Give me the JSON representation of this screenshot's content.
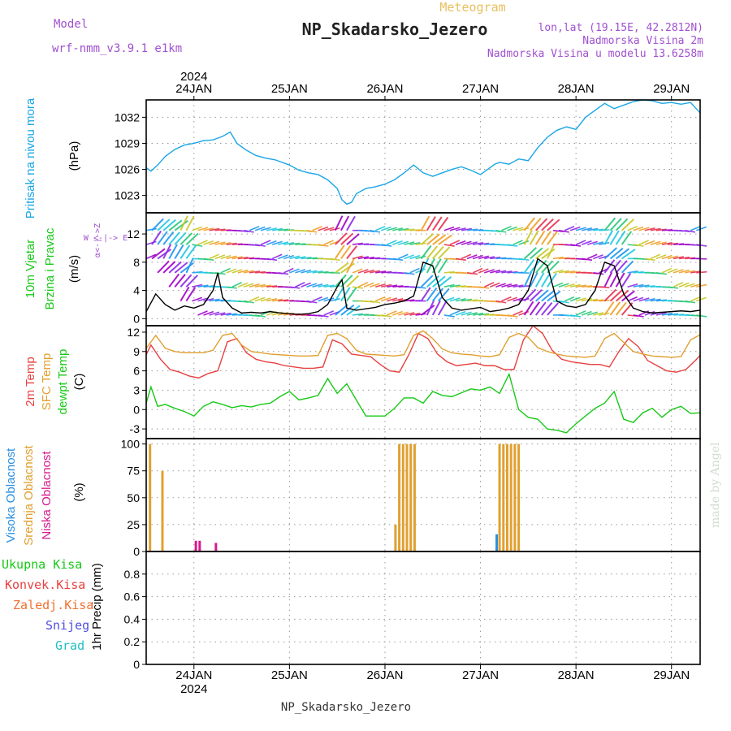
{
  "header": {
    "model_label": "Model",
    "model_name": "wrf-nmm_v3.9.1 e1km",
    "product": "Meteogram",
    "station": "NP_Skadarsko_Jezero",
    "lonlat": "lon,lat (19.15E, 42.2812N)",
    "elevation": "Nadmorska Visina 2m",
    "model_elevation": "Nadmorska Visina u modelu 13.6258m",
    "credit": "made by Angel",
    "footer_station": "NP_Skadarsko_Jezero"
  },
  "colors": {
    "pressure": "#1aa6e6",
    "wind_label": "#17c917",
    "wind_label2": "#22b022",
    "wind_speed": "#000000",
    "temp2m": "#e84040",
    "sfc_temp": "#e0a030",
    "dewpoint": "#17c917",
    "cloud_high": "#2a8fe0",
    "cloud_mid": "#e0a030",
    "cloud_low": "#d81b8c",
    "precip_total": "#17c917",
    "precip_conv": "#e84040",
    "precip_grid": "#f07030",
    "snow": "#5050e0",
    "hail": "#20c0c0",
    "purple": "#a050d0",
    "gold": "#e8c060"
  },
  "chart_data": {
    "x_axis": {
      "days": [
        "24JAN",
        "25JAN",
        "26JAN",
        "27JAN",
        "28JAN",
        "29JAN"
      ],
      "year": "2024",
      "range_days": [
        -0.5,
        5.3
      ]
    },
    "panels": [
      {
        "id": "pressure",
        "type": "line",
        "ylabel_title": "Pritisak na nivou mora",
        "ylabel_unit": "(hPa)",
        "ylim": [
          1021,
          1034
        ],
        "ticks": [
          1023,
          1026,
          1029,
          1032
        ],
        "series": [
          {
            "x": [
              -0.5,
              -0.45,
              -0.38,
              -0.3,
              -0.2,
              -0.1,
              0.0,
              0.1,
              0.2,
              0.3,
              0.38,
              0.45,
              0.55,
              0.65,
              0.75,
              0.85,
              1.0,
              1.1,
              1.2,
              1.3,
              1.4,
              1.5,
              1.55,
              1.6,
              1.65,
              1.7,
              1.8,
              1.9,
              2.0,
              2.1,
              2.2,
              2.3,
              2.4,
              2.5,
              2.6,
              2.7,
              2.8,
              2.9,
              3.0,
              3.1,
              3.15,
              3.2,
              3.3,
              3.4,
              3.5,
              3.6,
              3.7,
              3.8,
              3.9,
              4.0,
              4.1,
              4.2,
              4.3,
              4.4,
              4.5,
              4.6,
              4.7,
              4.8,
              4.9,
              5.0,
              5.1,
              5.2,
              5.3
            ],
            "y": [
              1026.2,
              1025.8,
              1026.5,
              1027.5,
              1028.3,
              1028.8,
              1029.0,
              1029.3,
              1029.4,
              1029.8,
              1030.3,
              1029.0,
              1028.2,
              1027.6,
              1027.3,
              1027.1,
              1026.5,
              1025.9,
              1025.6,
              1025.4,
              1024.8,
              1023.8,
              1022.5,
              1022.0,
              1022.2,
              1023.2,
              1023.8,
              1024.0,
              1024.3,
              1024.8,
              1025.6,
              1026.5,
              1025.6,
              1025.2,
              1025.6,
              1026.0,
              1026.3,
              1025.9,
              1025.4,
              1026.2,
              1026.6,
              1026.8,
              1026.6,
              1027.2,
              1027.0,
              1028.5,
              1029.7,
              1030.5,
              1030.9,
              1030.6,
              1032.0,
              1032.8,
              1033.6,
              1033.0,
              1033.4,
              1033.8,
              1034.0,
              1033.9,
              1033.6,
              1033.7,
              1033.5,
              1033.7,
              1032.5
            ],
            "name": ""
          }
        ]
      },
      {
        "id": "wind",
        "type": "line",
        "ylabel_title_1": "10m Vjetar",
        "ylabel_title_2": "Brzina i Pravac",
        "ylabel_unit": "(m/s)",
        "legend_compass": "W <-|-> E",
        "legend_compass_v": "α<-|->Z",
        "ylim": [
          -1,
          15
        ],
        "ticks": [
          0,
          4,
          8,
          12
        ],
        "series": [
          {
            "x": [
              -0.5,
              -0.4,
              -0.3,
              -0.2,
              -0.1,
              0.0,
              0.1,
              0.2,
              0.25,
              0.3,
              0.4,
              0.5,
              0.6,
              0.7,
              0.8,
              0.9,
              1.0,
              1.1,
              1.2,
              1.3,
              1.4,
              1.5,
              1.55,
              1.6,
              1.7,
              1.8,
              1.9,
              2.0,
              2.1,
              2.2,
              2.3,
              2.4,
              2.5,
              2.6,
              2.7,
              2.8,
              2.9,
              3.0,
              3.1,
              3.2,
              3.3,
              3.4,
              3.5,
              3.6,
              3.7,
              3.8,
              3.9,
              4.0,
              4.1,
              4.2,
              4.3,
              4.4,
              4.5,
              4.6,
              4.7,
              4.8,
              4.9,
              5.0,
              5.1,
              5.2,
              5.3
            ],
            "y": [
              1.0,
              3.5,
              2.0,
              1.2,
              1.8,
              1.5,
              2.0,
              4.0,
              6.5,
              3.0,
              1.5,
              0.8,
              0.9,
              0.8,
              1.0,
              0.8,
              0.7,
              0.6,
              0.7,
              1.0,
              2.0,
              4.5,
              5.5,
              1.5,
              1.2,
              1.4,
              1.6,
              2.0,
              2.2,
              2.5,
              3.2,
              8.0,
              7.5,
              3.0,
              1.5,
              1.2,
              1.4,
              1.6,
              1.0,
              1.2,
              1.5,
              2.0,
              4.0,
              8.5,
              7.5,
              2.5,
              1.8,
              1.6,
              2.0,
              4.0,
              8.0,
              7.5,
              3.5,
              1.5,
              1.0,
              0.8,
              0.9,
              1.0,
              1.1,
              1.0,
              1.2
            ],
            "name": ""
          }
        ]
      },
      {
        "id": "temperature",
        "type": "line",
        "ylabel_title_1": "2m Temp",
        "ylabel_title_2": "SFC Temp",
        "ylabel_title_3": "dewpt Temp",
        "ylabel_unit": "(C)",
        "ylim": [
          -4.5,
          13
        ],
        "ticks": [
          -3,
          0,
          3,
          6,
          9,
          12
        ],
        "series": [
          {
            "name": "2m Temp",
            "x": [
              -0.5,
              -0.45,
              -0.35,
              -0.25,
              -0.15,
              -0.05,
              0.05,
              0.15,
              0.25,
              0.35,
              0.45,
              0.55,
              0.65,
              0.75,
              0.85,
              0.95,
              1.05,
              1.15,
              1.25,
              1.35,
              1.45,
              1.55,
              1.65,
              1.75,
              1.85,
              1.95,
              2.05,
              2.15,
              2.25,
              2.35,
              2.45,
              2.55,
              2.65,
              2.75,
              2.85,
              2.95,
              3.05,
              3.15,
              3.25,
              3.35,
              3.45,
              3.55,
              3.65,
              3.75,
              3.85,
              3.95,
              4.05,
              4.15,
              4.25,
              4.35,
              4.45,
              4.55,
              4.65,
              4.75,
              4.85,
              4.95,
              5.05,
              5.15,
              5.25,
              5.3
            ],
            "y": [
              8.5,
              10.0,
              7.8,
              6.2,
              5.8,
              5.2,
              4.9,
              5.6,
              6.0,
              10.5,
              11.0,
              8.8,
              7.8,
              7.4,
              7.2,
              6.8,
              6.6,
              6.4,
              6.4,
              6.6,
              10.8,
              10.2,
              8.6,
              8.4,
              8.2,
              7.0,
              6.0,
              5.8,
              8.5,
              11.8,
              11.0,
              8.6,
              7.4,
              6.8,
              7.0,
              7.2,
              6.8,
              6.8,
              6.2,
              6.2,
              10.8,
              13.0,
              11.8,
              9.2,
              7.8,
              7.4,
              7.2,
              7.0,
              7.0,
              6.6,
              9.0,
              11.0,
              9.8,
              7.6,
              6.8,
              6.0,
              5.8,
              6.2,
              7.6,
              8.4
            ]
          },
          {
            "name": "SFC Temp",
            "x": [
              -0.5,
              -0.4,
              -0.3,
              -0.2,
              -0.1,
              0.0,
              0.1,
              0.2,
              0.3,
              0.4,
              0.5,
              0.6,
              0.7,
              0.8,
              0.9,
              1.0,
              1.1,
              1.2,
              1.3,
              1.4,
              1.5,
              1.6,
              1.7,
              1.8,
              1.9,
              2.0,
              2.1,
              2.2,
              2.3,
              2.4,
              2.5,
              2.6,
              2.7,
              2.8,
              2.9,
              3.0,
              3.1,
              3.2,
              3.3,
              3.4,
              3.5,
              3.6,
              3.7,
              3.8,
              3.9,
              4.0,
              4.1,
              4.2,
              4.3,
              4.4,
              4.5,
              4.6,
              4.7,
              4.8,
              4.9,
              5.0,
              5.1,
              5.2,
              5.3
            ],
            "y": [
              9.5,
              11.5,
              9.5,
              9.0,
              8.8,
              8.8,
              8.8,
              9.2,
              11.5,
              11.8,
              10.0,
              9.0,
              8.8,
              8.6,
              8.5,
              8.4,
              8.3,
              8.3,
              8.4,
              11.5,
              11.8,
              11.0,
              9.2,
              8.6,
              8.5,
              8.4,
              8.3,
              8.5,
              11.5,
              12.2,
              11.0,
              9.4,
              8.8,
              8.6,
              8.5,
              8.3,
              8.2,
              8.5,
              11.2,
              11.8,
              11.2,
              9.6,
              9.0,
              8.6,
              8.3,
              8.2,
              8.1,
              8.3,
              11.0,
              11.8,
              10.4,
              9.0,
              8.6,
              8.3,
              8.2,
              8.1,
              8.2,
              10.8,
              11.6
            ]
          },
          {
            "name": "dewpt Temp",
            "x": [
              -0.5,
              -0.45,
              -0.38,
              -0.3,
              -0.2,
              -0.1,
              0.0,
              0.1,
              0.2,
              0.3,
              0.4,
              0.5,
              0.6,
              0.7,
              0.8,
              0.9,
              1.0,
              1.1,
              1.2,
              1.3,
              1.4,
              1.5,
              1.6,
              1.7,
              1.8,
              1.9,
              2.0,
              2.1,
              2.2,
              2.3,
              2.4,
              2.5,
              2.6,
              2.7,
              2.8,
              2.9,
              3.0,
              3.1,
              3.2,
              3.3,
              3.4,
              3.5,
              3.6,
              3.7,
              3.8,
              3.9,
              4.0,
              4.1,
              4.2,
              4.3,
              4.4,
              4.5,
              4.6,
              4.7,
              4.8,
              4.9,
              5.0,
              5.1,
              5.2,
              5.3
            ],
            "y": [
              1.0,
              3.5,
              0.5,
              0.8,
              0.2,
              -0.3,
              -1.0,
              0.5,
              1.2,
              0.8,
              0.3,
              0.6,
              0.4,
              0.8,
              1.0,
              2.0,
              2.8,
              1.5,
              1.8,
              2.2,
              4.8,
              2.5,
              4.0,
              1.5,
              -1.0,
              -1.0,
              -1.0,
              0.2,
              1.8,
              1.8,
              1.0,
              2.8,
              2.2,
              2.0,
              2.6,
              3.2,
              3.0,
              3.5,
              2.5,
              5.5,
              0.0,
              -1.2,
              -1.5,
              -3.0,
              -3.2,
              -3.6,
              -2.2,
              -1.0,
              0.2,
              1.0,
              2.8,
              -1.5,
              -2.0,
              -0.5,
              0.2,
              -1.2,
              0.0,
              0.5,
              -0.6,
              -0.5
            ]
          }
        ]
      },
      {
        "id": "clouds",
        "type": "bar",
        "ylabel_title_1": "Visoka Oblacnost",
        "ylabel_title_2": "Srednja Oblacnost",
        "ylabel_title_3": "Niska Oblacnost",
        "ylabel_unit": "(%)",
        "ylim": [
          0,
          105
        ],
        "ticks": [
          0,
          25,
          50,
          75,
          100
        ],
        "series": [
          {
            "name": "Visoka Oblacnost",
            "x": [
              3.17
            ],
            "values": [
              16
            ]
          },
          {
            "name": "Srednja Oblacnost",
            "x": [
              -0.46,
              -0.33,
              2.11,
              2.15,
              2.19,
              2.23,
              2.27,
              2.31,
              3.2,
              3.24,
              3.28,
              3.32,
              3.36,
              3.4
            ],
            "values": [
              100,
              75,
              25,
              100,
              100,
              100,
              100,
              100,
              100,
              100,
              100,
              100,
              100,
              100
            ]
          },
          {
            "name": "Niska Oblacnost",
            "x": [
              0.02,
              0.06,
              0.23
            ],
            "values": [
              10,
              10,
              8
            ]
          }
        ]
      },
      {
        "id": "precip",
        "type": "bar",
        "ylabel_unit": "1hr Precip (mm)",
        "ylim": [
          0,
          1.0
        ],
        "ticks": [
          0,
          0.2,
          0.4,
          0.6,
          0.8
        ],
        "legend": [
          "Ukupna Kisa",
          "Konvek.Kisa",
          "Zaledj.Kisa",
          "Snijeg",
          "Grad"
        ],
        "series": []
      }
    ]
  }
}
